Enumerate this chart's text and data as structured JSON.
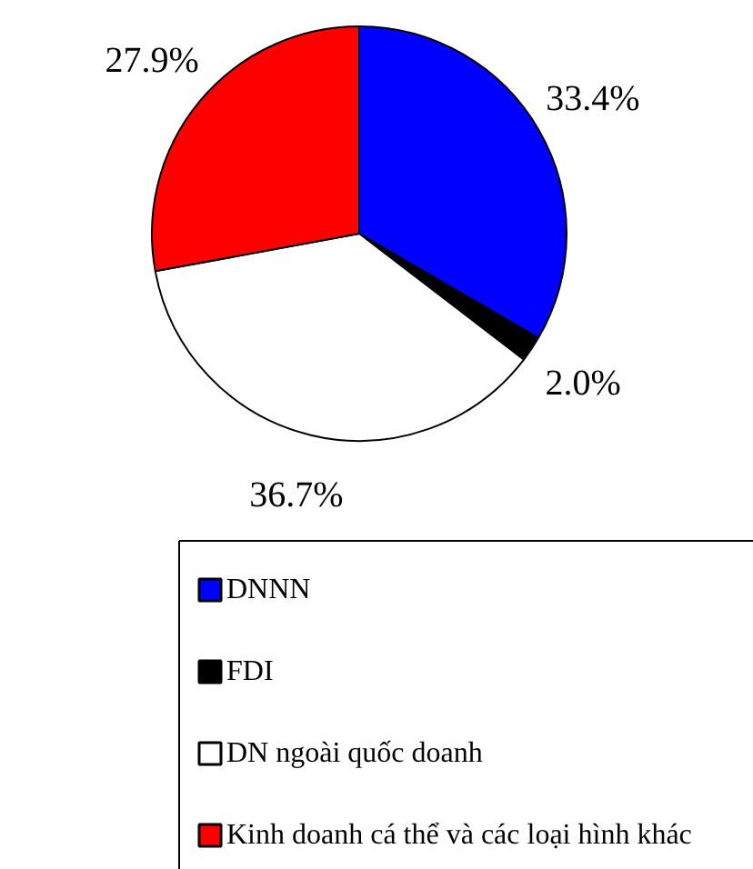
{
  "chart_data": {
    "type": "pie",
    "categories": [
      "DNNN",
      "FDI",
      "DN ngoài quốc doanh",
      "Kinh doanh cá thể và các loại hình khác"
    ],
    "values": [
      33.4,
      2.0,
      36.7,
      27.9
    ],
    "colors": [
      "#0000ff",
      "#000000",
      "#ffffff",
      "#ff0000"
    ],
    "value_labels": [
      "33.4%",
      "2.0%",
      "36.7%",
      "27.9%"
    ],
    "legend": "bottom"
  }
}
